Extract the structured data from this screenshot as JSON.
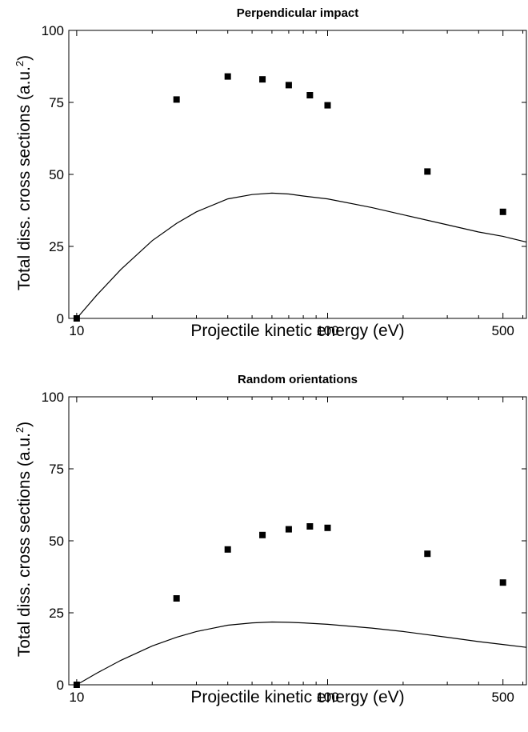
{
  "chart_data": [
    {
      "type": "scatter",
      "title": "Perpendicular impact",
      "xlabel": "Projectile kinetic energy (eV)",
      "ylabel": "Total diss. cross sections (a.u.",
      "ylabel_sup": "2",
      "ylabel_suffix": ")",
      "xscale": "log",
      "xlim": [
        9.3,
        620
      ],
      "ylim": [
        0,
        100
      ],
      "xticks": [
        10,
        100,
        500
      ],
      "xtick_labels": [
        "10",
        "100",
        "500"
      ],
      "yticks": [
        0,
        25,
        50,
        75,
        100
      ],
      "ytick_labels": [
        "0",
        "25",
        "50",
        "75",
        "100"
      ],
      "series": [
        {
          "kind": "markers",
          "marker": "square",
          "x": [
            10,
            25,
            40,
            55,
            70,
            85,
            100,
            250,
            500
          ],
          "y": [
            0,
            76,
            84,
            83,
            81,
            77.5,
            74,
            51,
            37
          ]
        },
        {
          "kind": "line",
          "x": [
            10,
            12,
            15,
            20,
            25,
            30,
            40,
            50,
            60,
            70,
            80,
            100,
            150,
            200,
            300,
            400,
            500,
            620
          ],
          "y": [
            0,
            8,
            17,
            27,
            33,
            37,
            41.5,
            43,
            43.5,
            43.2,
            42.5,
            41.5,
            38.5,
            36,
            32.5,
            30,
            28.5,
            26.5
          ]
        }
      ],
      "grid": false
    },
    {
      "type": "scatter",
      "title": "Random orientations",
      "xlabel": "Projectile kinetic energy (eV)",
      "ylabel": "Total diss. cross sections (a.u.",
      "ylabel_sup": "2",
      "ylabel_suffix": ")",
      "xscale": "log",
      "xlim": [
        9.3,
        620
      ],
      "ylim": [
        0,
        100
      ],
      "xticks": [
        10,
        100,
        500
      ],
      "xtick_labels": [
        "10",
        "100",
        "500"
      ],
      "yticks": [
        0,
        25,
        50,
        75,
        100
      ],
      "ytick_labels": [
        "0",
        "25",
        "50",
        "75",
        "100"
      ],
      "series": [
        {
          "kind": "markers",
          "marker": "square",
          "x": [
            10,
            25,
            40,
            55,
            70,
            85,
            100,
            250,
            500
          ],
          "y": [
            0,
            30,
            47,
            52,
            54,
            55,
            54.5,
            45.5,
            35.5
          ]
        },
        {
          "kind": "line",
          "x": [
            10,
            12,
            15,
            20,
            25,
            30,
            40,
            50,
            60,
            70,
            80,
            100,
            150,
            200,
            300,
            400,
            500,
            620
          ],
          "y": [
            0,
            4,
            8.5,
            13.5,
            16.5,
            18.5,
            20.7,
            21.5,
            21.8,
            21.7,
            21.5,
            21,
            19.7,
            18.5,
            16.5,
            15,
            14,
            13
          ]
        }
      ],
      "grid": false
    }
  ]
}
